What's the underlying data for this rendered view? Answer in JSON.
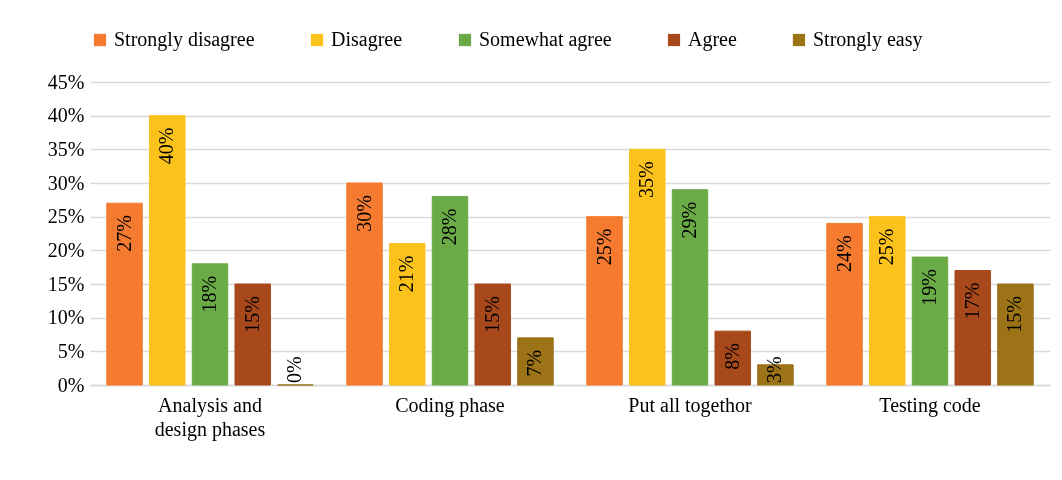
{
  "chart_data": {
    "type": "bar",
    "categories": [
      "Analysis and design phases",
      "Coding phase",
      "Put all togethor",
      "Testing code"
    ],
    "series": [
      {
        "name": "Strongly disagree",
        "color": "#f47b30",
        "values": [
          27,
          30,
          25,
          24
        ],
        "value_labels": [
          "27%",
          "30%",
          "25%",
          "24%"
        ]
      },
      {
        "name": "Disagree",
        "color": "#fcc21c",
        "values": [
          40,
          21,
          35,
          25
        ],
        "value_labels": [
          "40%",
          "21%",
          "35%",
          "25%"
        ]
      },
      {
        "name": "Somewhat agree",
        "color": "#6aab47",
        "values": [
          18,
          28,
          29,
          19
        ],
        "value_labels": [
          "18%",
          "28%",
          "29%",
          "19%"
        ]
      },
      {
        "name": "Agree",
        "color": "#a8491c",
        "values": [
          15,
          15,
          8,
          17
        ],
        "value_labels": [
          "15%",
          "15%",
          "8%",
          "17%"
        ]
      },
      {
        "name": "Strongly easy",
        "color": "#9c7317",
        "values": [
          0,
          7,
          3,
          15
        ],
        "value_labels": [
          "0%",
          "7%",
          "3%",
          "15%"
        ]
      }
    ],
    "ylim": [
      0,
      45
    ],
    "yticks": [
      {
        "value": 0,
        "label": "0%"
      },
      {
        "value": 5,
        "label": "5%"
      },
      {
        "value": 10,
        "label": "10%"
      },
      {
        "value": 15,
        "label": "15%"
      },
      {
        "value": 20,
        "label": "20%"
      },
      {
        "value": 25,
        "label": "25%"
      },
      {
        "value": 30,
        "label": "30%"
      },
      {
        "value": 35,
        "label": "35%"
      },
      {
        "value": 40,
        "label": "40%"
      },
      {
        "value": 45,
        "label": "45%"
      }
    ],
    "grid": "y",
    "legend": "top"
  }
}
